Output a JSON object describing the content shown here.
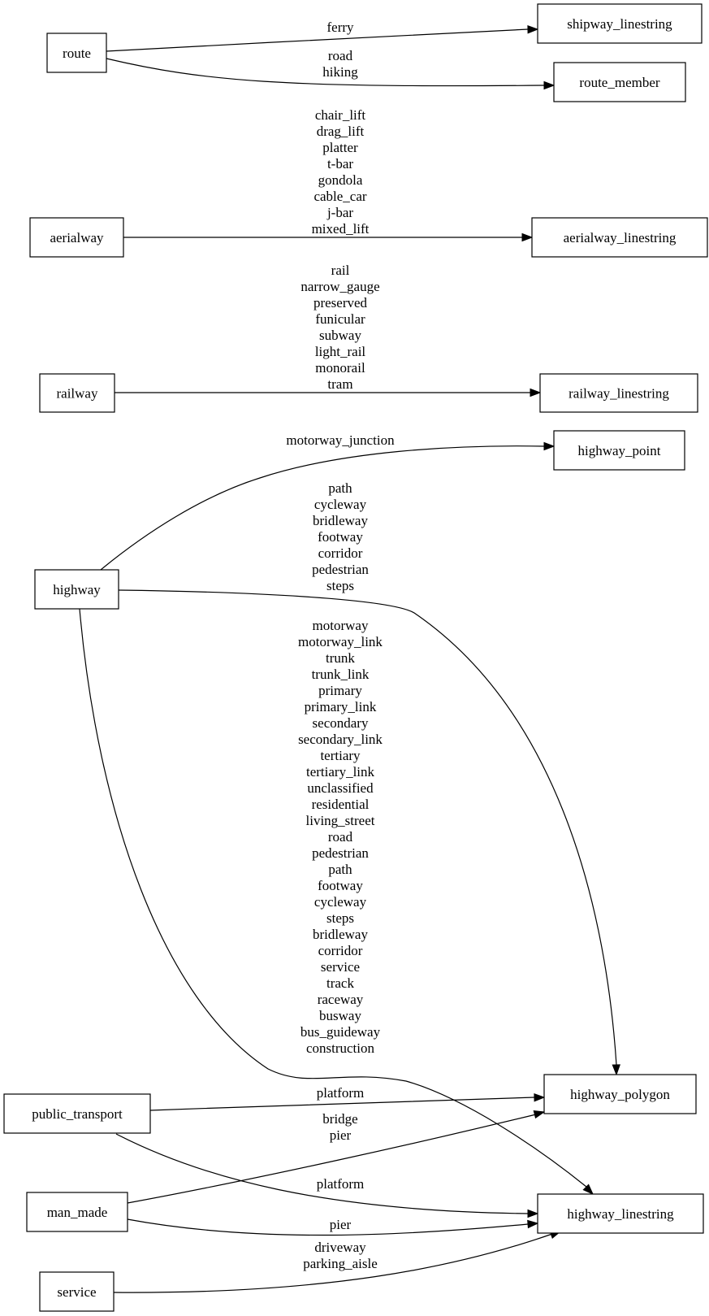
{
  "nodes": {
    "route": "route",
    "shipway_linestring": "shipway_linestring",
    "route_member": "route_member",
    "aerialway": "aerialway",
    "aerialway_linestring": "aerialway_linestring",
    "railway": "railway",
    "railway_linestring": "railway_linestring",
    "highway_point": "highway_point",
    "highway": "highway",
    "highway_polygon": "highway_polygon",
    "public_transport": "public_transport",
    "man_made": "man_made",
    "highway_linestring": "highway_linestring",
    "service": "service"
  },
  "edges": [
    {
      "from": "route",
      "to": "shipway_linestring",
      "labels": [
        "ferry"
      ]
    },
    {
      "from": "route",
      "to": "route_member",
      "labels": [
        "road",
        "hiking"
      ]
    },
    {
      "from": "aerialway",
      "to": "aerialway_linestring",
      "labels": [
        "chair_lift",
        "drag_lift",
        "platter",
        "t-bar",
        "gondola",
        "cable_car",
        "j-bar",
        "mixed_lift"
      ]
    },
    {
      "from": "railway",
      "to": "railway_linestring",
      "labels": [
        "rail",
        "narrow_gauge",
        "preserved",
        "funicular",
        "subway",
        "light_rail",
        "monorail",
        "tram"
      ]
    },
    {
      "from": "highway",
      "to": "highway_point",
      "labels": [
        "motorway_junction"
      ]
    },
    {
      "from": "highway",
      "to": "highway_polygon",
      "labels": [
        "path",
        "cycleway",
        "bridleway",
        "footway",
        "corridor",
        "pedestrian",
        "steps"
      ]
    },
    {
      "from": "highway",
      "to": "highway_linestring",
      "labels": [
        "motorway",
        "motorway_link",
        "trunk",
        "trunk_link",
        "primary",
        "primary_link",
        "secondary",
        "secondary_link",
        "tertiary",
        "tertiary_link",
        "unclassified",
        "residential",
        "living_street",
        "road",
        "pedestrian",
        "path",
        "footway",
        "cycleway",
        "steps",
        "bridleway",
        "corridor",
        "service",
        "track",
        "raceway",
        "busway",
        "bus_guideway",
        "construction"
      ]
    },
    {
      "from": "public_transport",
      "to": "highway_polygon",
      "labels": [
        "platform"
      ]
    },
    {
      "from": "man_made",
      "to": "highway_polygon",
      "labels": [
        "bridge",
        "pier"
      ]
    },
    {
      "from": "public_transport",
      "to": "highway_linestring",
      "labels": [
        "platform"
      ]
    },
    {
      "from": "man_made",
      "to": "highway_linestring",
      "labels": [
        "pier"
      ]
    },
    {
      "from": "service",
      "to": "highway_linestring",
      "labels": [
        "driveway",
        "parking_aisle"
      ]
    }
  ]
}
